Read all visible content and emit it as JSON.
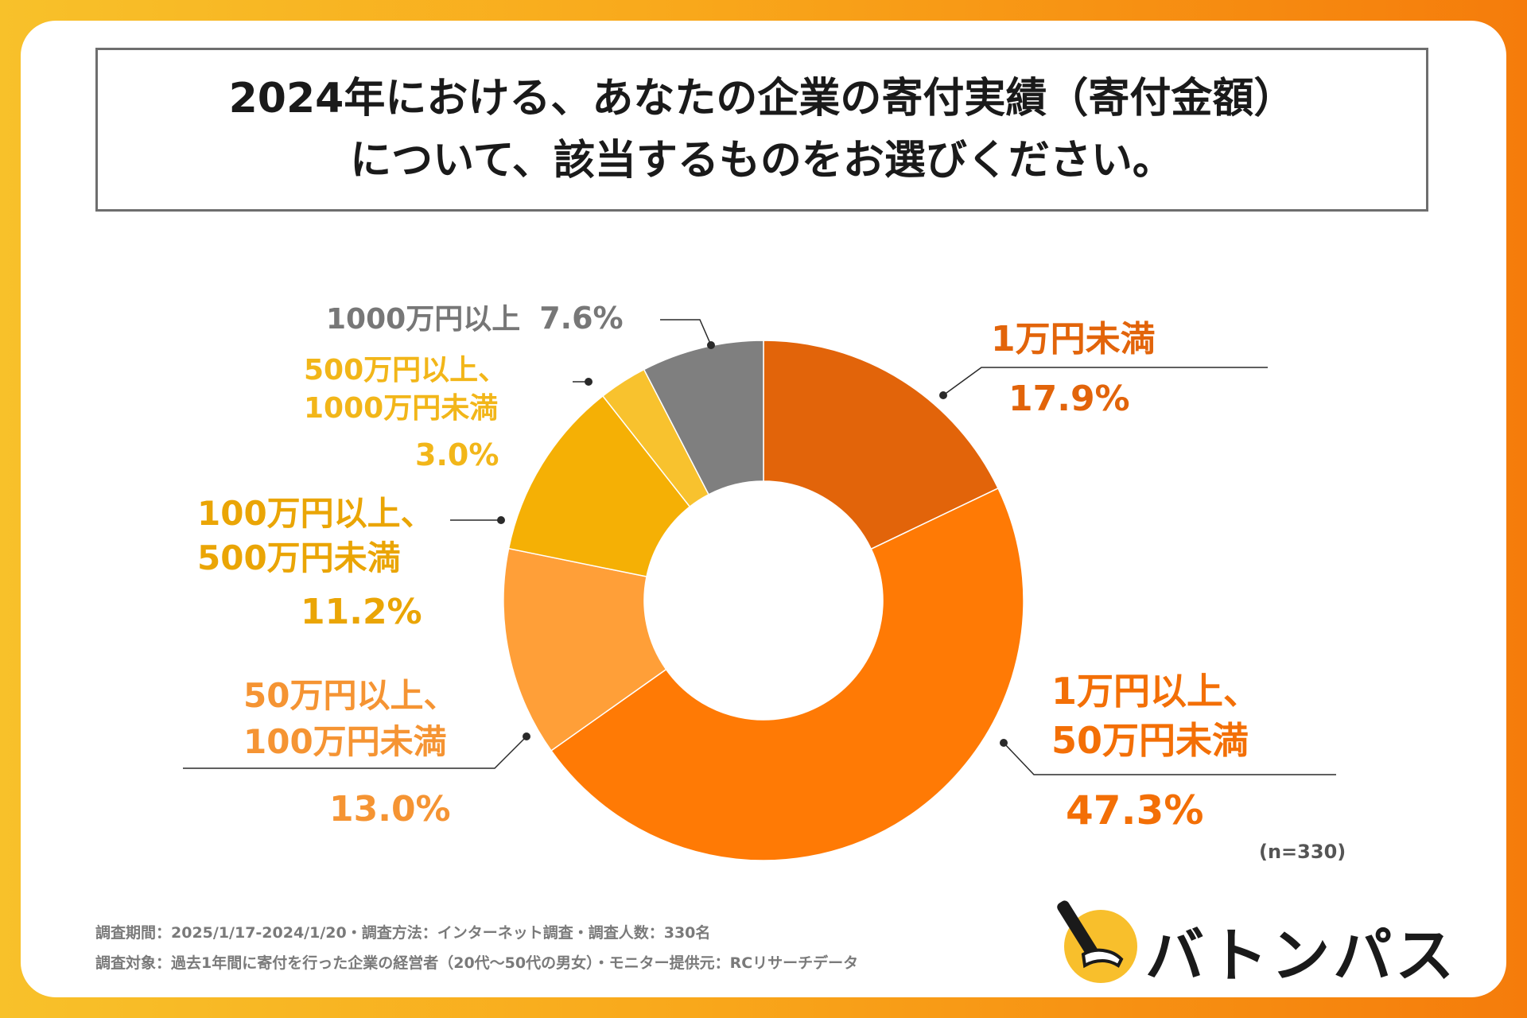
{
  "title": {
    "line1": "2024年における、あなたの企業の寄付実績（寄付金額）",
    "line2": "について、該当するものをお選びください。"
  },
  "chart_data": {
    "type": "pie",
    "donut": true,
    "title": "2024年における、あなたの企業の寄付実績（寄付金額）について、該当するものをお選びください。",
    "sample_size": "(n=330)",
    "slices": [
      {
        "label_lines": [
          "1万円未満"
        ],
        "value": 17.9,
        "value_label": "17.9%",
        "color": "#e2640a",
        "text_color": "#e2640a"
      },
      {
        "label_lines": [
          "1万円以上、",
          "50万円未満"
        ],
        "value": 47.3,
        "value_label": "47.3%",
        "color": "#ff7a05",
        "text_color": "#f36f06"
      },
      {
        "label_lines": [
          "50万円以上、",
          "100万円未満"
        ],
        "value": 13.0,
        "value_label": "13.0%",
        "color": "#ff9f38",
        "text_color": "#f59433"
      },
      {
        "label_lines": [
          "100万円以上、",
          "500万円未満"
        ],
        "value": 11.2,
        "value_label": "11.2%",
        "color": "#f5b005",
        "text_color": "#eaa505"
      },
      {
        "label_lines": [
          "500万円以上、",
          "1000万円未満"
        ],
        "value": 3.0,
        "value_label": "3.0%",
        "color": "#f8c22e",
        "text_color": "#f2b619"
      },
      {
        "label_lines": [
          "1000万円以上"
        ],
        "value": 7.6,
        "value_label": "7.6%",
        "color": "#7f7f7f",
        "text_color": "#777777"
      }
    ]
  },
  "footer": {
    "line1": "調査期間：2025/1/17-2024/1/20・調査方法：インターネット調査・調査人数：330名",
    "line2": "調査対象：過去1年間に寄付を行った企業の経営者（20代〜50代の男女）・モニター提供元：RCリサーチデータ"
  },
  "logo": {
    "text": "バトンパス",
    "circle_color": "#f8bf2c"
  }
}
